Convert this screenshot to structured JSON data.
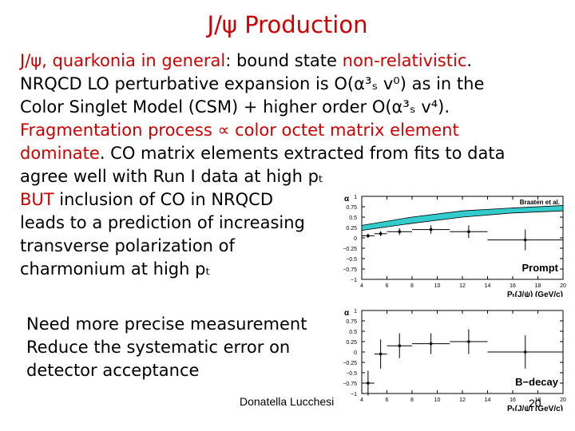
{
  "slide": {
    "title": "J/ψ Production",
    "lines": [
      {
        "parts": [
          {
            "text": "J/ψ, quarkonia in general",
            "color": "#cc0000"
          },
          {
            "text": ":  bound state ",
            "color": "#000000"
          },
          {
            "text": "non-relativistic",
            "color": "#cc0000"
          },
          {
            "text": ".",
            "color": "#000000"
          }
        ]
      },
      {
        "parts": [
          {
            "text": "NRQCD LO perturbative expansion is O(α³ₛ v⁰) as in the",
            "color": "#000000"
          }
        ]
      },
      {
        "parts": [
          {
            "text": "Color Singlet Model (CSM) + higher order O(α³ₛ v⁴).",
            "color": "#000000"
          }
        ]
      },
      {
        "parts": [
          {
            "text": "Fragmentation process ∝ color octet matrix element",
            "color": "#cc0000"
          }
        ]
      },
      {
        "parts": [
          {
            "text": "dominate",
            "color": "#cc0000"
          },
          {
            "text": ". CO matrix elements extracted from fits to data",
            "color": "#000000"
          }
        ]
      },
      {
        "parts": [
          {
            "text": "agree well with Run I data at high pₜ",
            "color": "#000000"
          }
        ]
      },
      {
        "parts": [
          {
            "text": "BUT",
            "color": "#cc0000"
          },
          {
            "text": " inclusion of CO in NRQCD",
            "color": "#000000"
          }
        ]
      },
      {
        "parts": [
          {
            "text": "leads to a prediction of increasing",
            "color": "#000000"
          }
        ]
      },
      {
        "parts": [
          {
            "text": "transverse polarization of",
            "color": "#000000"
          }
        ]
      },
      {
        "parts": [
          {
            "text": "charmonium at high pₜ",
            "color": "#000000"
          }
        ]
      }
    ],
    "note_lines": [
      "Need more precise measurement",
      "Reduce the systematic error on",
      "detector acceptance"
    ],
    "footer": "Donatella Lucchesi",
    "page_number": "20"
  },
  "chart_data": [
    {
      "type": "scatter",
      "panel_label": "Prompt",
      "band_label": "Braaten et al.",
      "xlabel": "Pₜ(J/ψ) (GeV/c)",
      "ylabel": "α",
      "xlim": [
        4,
        20
      ],
      "ylim": [
        -1,
        1
      ],
      "x_ticks": [
        4,
        6,
        8,
        10,
        12,
        14,
        16,
        18,
        20
      ],
      "y_ticks": [
        -1,
        -0.75,
        -0.5,
        -0.25,
        0,
        0.25,
        0.5,
        0.75,
        1
      ],
      "y_tick_labels": [
        "−1",
        "−0.75",
        "−0.5",
        "−0.25",
        "0",
        "0.25",
        "0.5",
        "0.75",
        "1"
      ],
      "band": {
        "x": [
          4,
          8,
          12,
          16,
          20
        ],
        "low": [
          0.18,
          0.35,
          0.5,
          0.6,
          0.65
        ],
        "high": [
          0.3,
          0.5,
          0.65,
          0.72,
          0.78
        ]
      },
      "points": [
        {
          "x": 4.5,
          "y": 0.05,
          "xerr": 0.5,
          "yerr": 0.05
        },
        {
          "x": 5.5,
          "y": 0.1,
          "xerr": 0.5,
          "yerr": 0.06
        },
        {
          "x": 7.0,
          "y": 0.15,
          "xerr": 1.0,
          "yerr": 0.08
        },
        {
          "x": 9.5,
          "y": 0.2,
          "xerr": 1.5,
          "yerr": 0.1
        },
        {
          "x": 12.5,
          "y": 0.15,
          "xerr": 1.5,
          "yerr": 0.15
        },
        {
          "x": 17.0,
          "y": -0.05,
          "xerr": 3.0,
          "yerr": 0.25
        }
      ]
    },
    {
      "type": "scatter",
      "panel_label": "B−decay",
      "xlabel": "Pₜ(J/ψ) (GeV/c)",
      "ylabel": "α",
      "xlim": [
        4,
        20
      ],
      "ylim": [
        -1,
        1
      ],
      "x_ticks": [
        4,
        6,
        8,
        10,
        12,
        14,
        16,
        18,
        20
      ],
      "y_ticks": [
        -1,
        -0.75,
        -0.5,
        -0.25,
        0,
        0.25,
        0.5,
        0.75,
        1
      ],
      "y_tick_labels": [
        "−1",
        "−0.75",
        "−0.5",
        "−0.25",
        "0",
        "0.25",
        "0.5",
        "0.75",
        "1"
      ],
      "points": [
        {
          "x": 4.5,
          "y": -0.75,
          "xerr": 0.5,
          "yerr": 0.3
        },
        {
          "x": 5.5,
          "y": -0.05,
          "xerr": 0.5,
          "yerr": 0.35
        },
        {
          "x": 7.0,
          "y": 0.15,
          "xerr": 1.0,
          "yerr": 0.3
        },
        {
          "x": 9.5,
          "y": 0.2,
          "xerr": 1.5,
          "yerr": 0.25
        },
        {
          "x": 12.5,
          "y": 0.25,
          "xerr": 1.5,
          "yerr": 0.3
        },
        {
          "x": 17.0,
          "y": 0.0,
          "xerr": 3.0,
          "yerr": 0.4
        }
      ]
    }
  ]
}
